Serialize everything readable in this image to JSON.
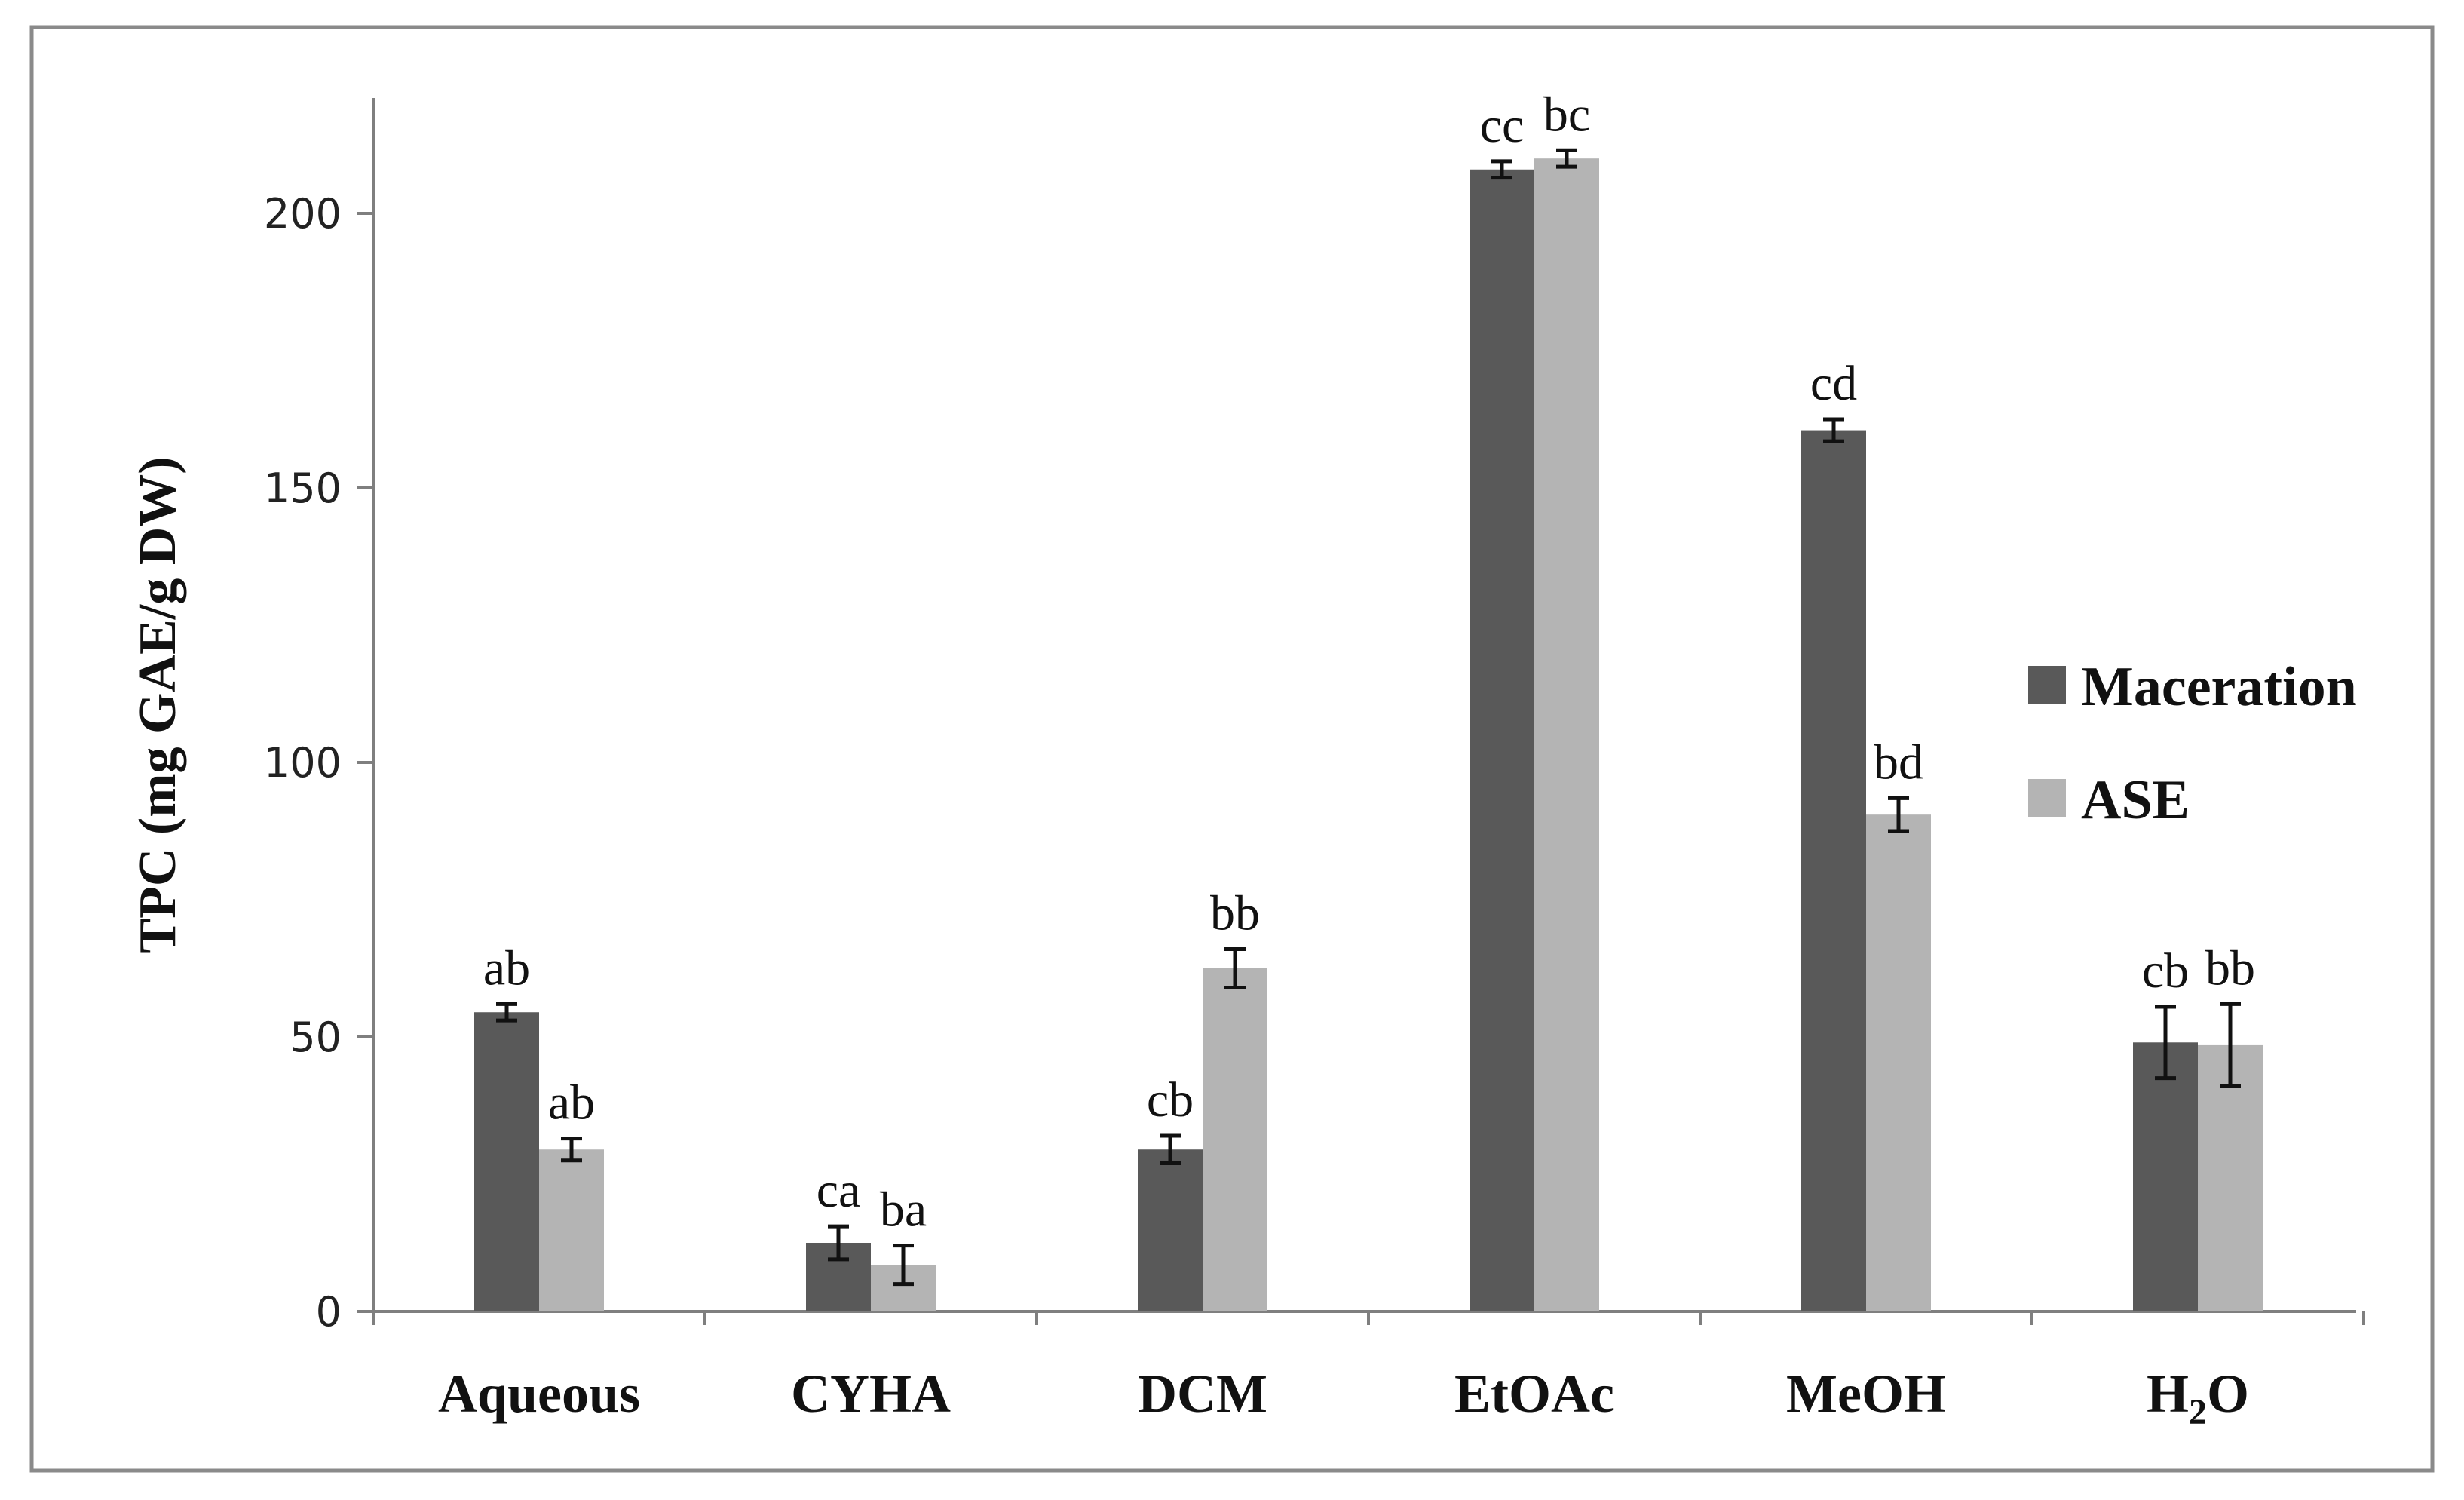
{
  "chart_data": {
    "type": "bar",
    "title": "",
    "xlabel": "",
    "ylabel": "TPC (mg GAE/g DW)",
    "ylim": [
      0,
      220
    ],
    "yticks": [
      0,
      50,
      100,
      150,
      200
    ],
    "grid": false,
    "legend_position": "right",
    "categories": [
      "Aqueous",
      "CYHA",
      "DCM",
      "EtOAc",
      "MeOH",
      "H2O"
    ],
    "category_display": [
      {
        "main": "Aqueous",
        "sub": "",
        "rest": ""
      },
      {
        "main": "CYHA",
        "sub": "",
        "rest": ""
      },
      {
        "main": "DCM",
        "sub": "",
        "rest": ""
      },
      {
        "main": "EtOAc",
        "sub": "",
        "rest": ""
      },
      {
        "main": "MeOH",
        "sub": "",
        "rest": ""
      },
      {
        "main": "H",
        "sub": "2",
        "rest": "O"
      }
    ],
    "series": [
      {
        "name": "Maceration",
        "color": "#595959",
        "values": [
          54.5,
          12.5,
          29.5,
          208,
          160.5,
          49
        ],
        "errors": [
          1.5,
          3.0,
          2.5,
          1.5,
          2.0,
          6.5
        ],
        "labels": [
          "ab",
          "ca",
          "cb",
          "cc",
          "cd",
          "cb"
        ]
      },
      {
        "name": "ASE",
        "color": "#b4b4b4",
        "values": [
          29.5,
          8.5,
          62.5,
          210,
          90.5,
          48.5
        ],
        "errors": [
          2.0,
          3.5,
          3.5,
          1.5,
          3.0,
          7.5
        ],
        "labels": [
          "ab",
          "ba",
          "bb",
          "bc",
          "bd",
          "bb"
        ]
      }
    ]
  }
}
